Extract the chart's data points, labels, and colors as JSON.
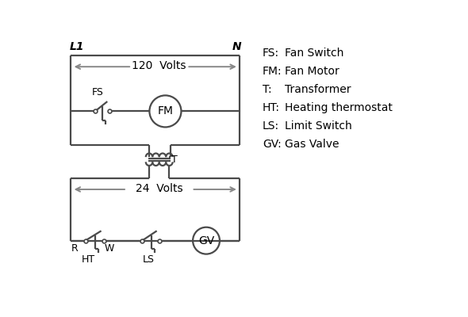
{
  "bg_color": "#ffffff",
  "line_color": "#4a4a4a",
  "arrow_color": "#888888",
  "text_color": "#000000",
  "legend": [
    [
      "FS:",
      "Fan Switch"
    ],
    [
      "FM:",
      "Fan Motor"
    ],
    [
      "T:",
      "Transformer"
    ],
    [
      "HT:",
      "Heating thermostat"
    ],
    [
      "LS:",
      "Limit Switch"
    ],
    [
      "GV:",
      "Gas Valve"
    ]
  ],
  "lw": 1.6
}
